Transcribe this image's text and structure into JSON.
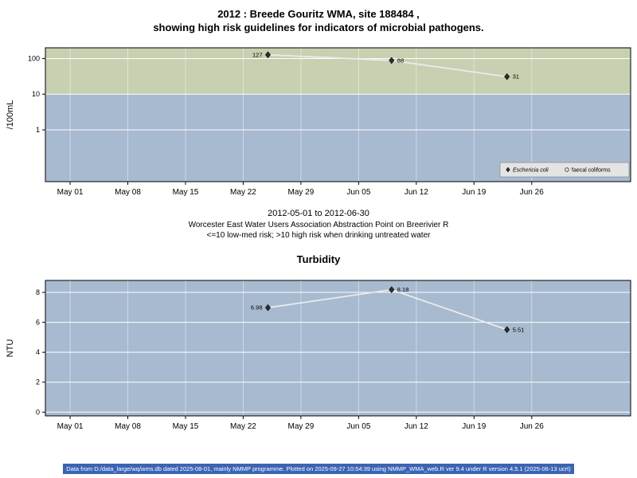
{
  "title": {
    "line1": "2012 : Breede Gouritz WMA, site 188484 ,",
    "line2": "showing high risk guidelines for indicators of microbial pathogens."
  },
  "caption": {
    "line1": "2012-05-01 to 2012-06-30",
    "line2": "Worcester East Water Users Association Abstraction Point on Breerivier R",
    "line3": "<=10 low-med risk; >10 high risk when drinking untreated water"
  },
  "footer": "Data from D:/data_large/wq/wms.db dated 2025-08-01, mainly NMMP programme. Plotted on 2025-09-27 10:54:39 using NMMP_WMA_web.R ver 9.4 under R version 4.5.1 (2025-06-13 ucrt)",
  "colors": {
    "high_risk_band": "#c7d0b0",
    "low_risk_band": "#a7bad0",
    "grid": "#ffffff",
    "line": "#ebebeb",
    "marker": "#303030",
    "axis": "#000000",
    "legend_bg": "#e4e4e4",
    "legend_border": "#888888",
    "footer_bg": "#3c64b4",
    "footer_text": "#ffffff"
  },
  "chart_data": [
    {
      "id": "ecoli",
      "type": "line",
      "title": "",
      "ylabel": "/100mL",
      "yscale": "log10",
      "yticks": [
        1,
        10,
        100
      ],
      "ylog10_range": [
        -1.45,
        2.3
      ],
      "risk_threshold": 10,
      "risk_note": "<=10 low-med risk; >10 high risk when drinking untreated water",
      "x_range_days": [
        -3,
        68
      ],
      "x_ticks": {
        "labels": [
          "May 01",
          "May 08",
          "May 15",
          "May 22",
          "May 29",
          "Jun 05",
          "Jun 12",
          "Jun 19",
          "Jun 26"
        ],
        "days": [
          0,
          7,
          14,
          21,
          28,
          35,
          42,
          49,
          56
        ]
      },
      "legend": [
        {
          "label": "Eschericia coli",
          "marker": "filled-diamond",
          "italic": true
        },
        {
          "label": "faecal coliforms",
          "marker": "open-circle",
          "italic": false
        }
      ],
      "series": [
        {
          "name": "Eschericia coli",
          "marker": "filled-diamond",
          "dates": [
            "2012-05-25",
            "2012-06-09",
            "2012-06-23"
          ],
          "days": [
            24,
            39,
            53
          ],
          "values": [
            127,
            88,
            31
          ],
          "labels": [
            "127",
            "88",
            "31"
          ],
          "label_side": [
            "left",
            "right",
            "right"
          ]
        },
        {
          "name": "faecal coliforms",
          "marker": "open-circle",
          "dates": [],
          "days": [],
          "values": [],
          "labels": [],
          "label_side": []
        }
      ]
    },
    {
      "id": "turbidity",
      "type": "line",
      "title": "Turbidity",
      "ylabel": "NTU",
      "yscale": "linear",
      "yticks": [
        0,
        2,
        4,
        6,
        8
      ],
      "y_range": [
        -0.25,
        8.8
      ],
      "x_range_days": [
        -3,
        68
      ],
      "x_ticks": {
        "labels": [
          "May 01",
          "May 08",
          "May 15",
          "May 22",
          "May 29",
          "Jun 05",
          "Jun 12",
          "Jun 19",
          "Jun 26"
        ],
        "days": [
          0,
          7,
          14,
          21,
          28,
          35,
          42,
          49,
          56
        ]
      },
      "series": [
        {
          "name": "Turbidity",
          "marker": "filled-diamond",
          "dates": [
            "2012-05-25",
            "2012-06-09",
            "2012-06-23"
          ],
          "days": [
            24,
            39,
            53
          ],
          "values": [
            6.98,
            8.18,
            5.51
          ],
          "labels": [
            "6.98",
            "8.18",
            "5.51"
          ],
          "label_side": [
            "left",
            "right",
            "right"
          ]
        }
      ]
    }
  ]
}
